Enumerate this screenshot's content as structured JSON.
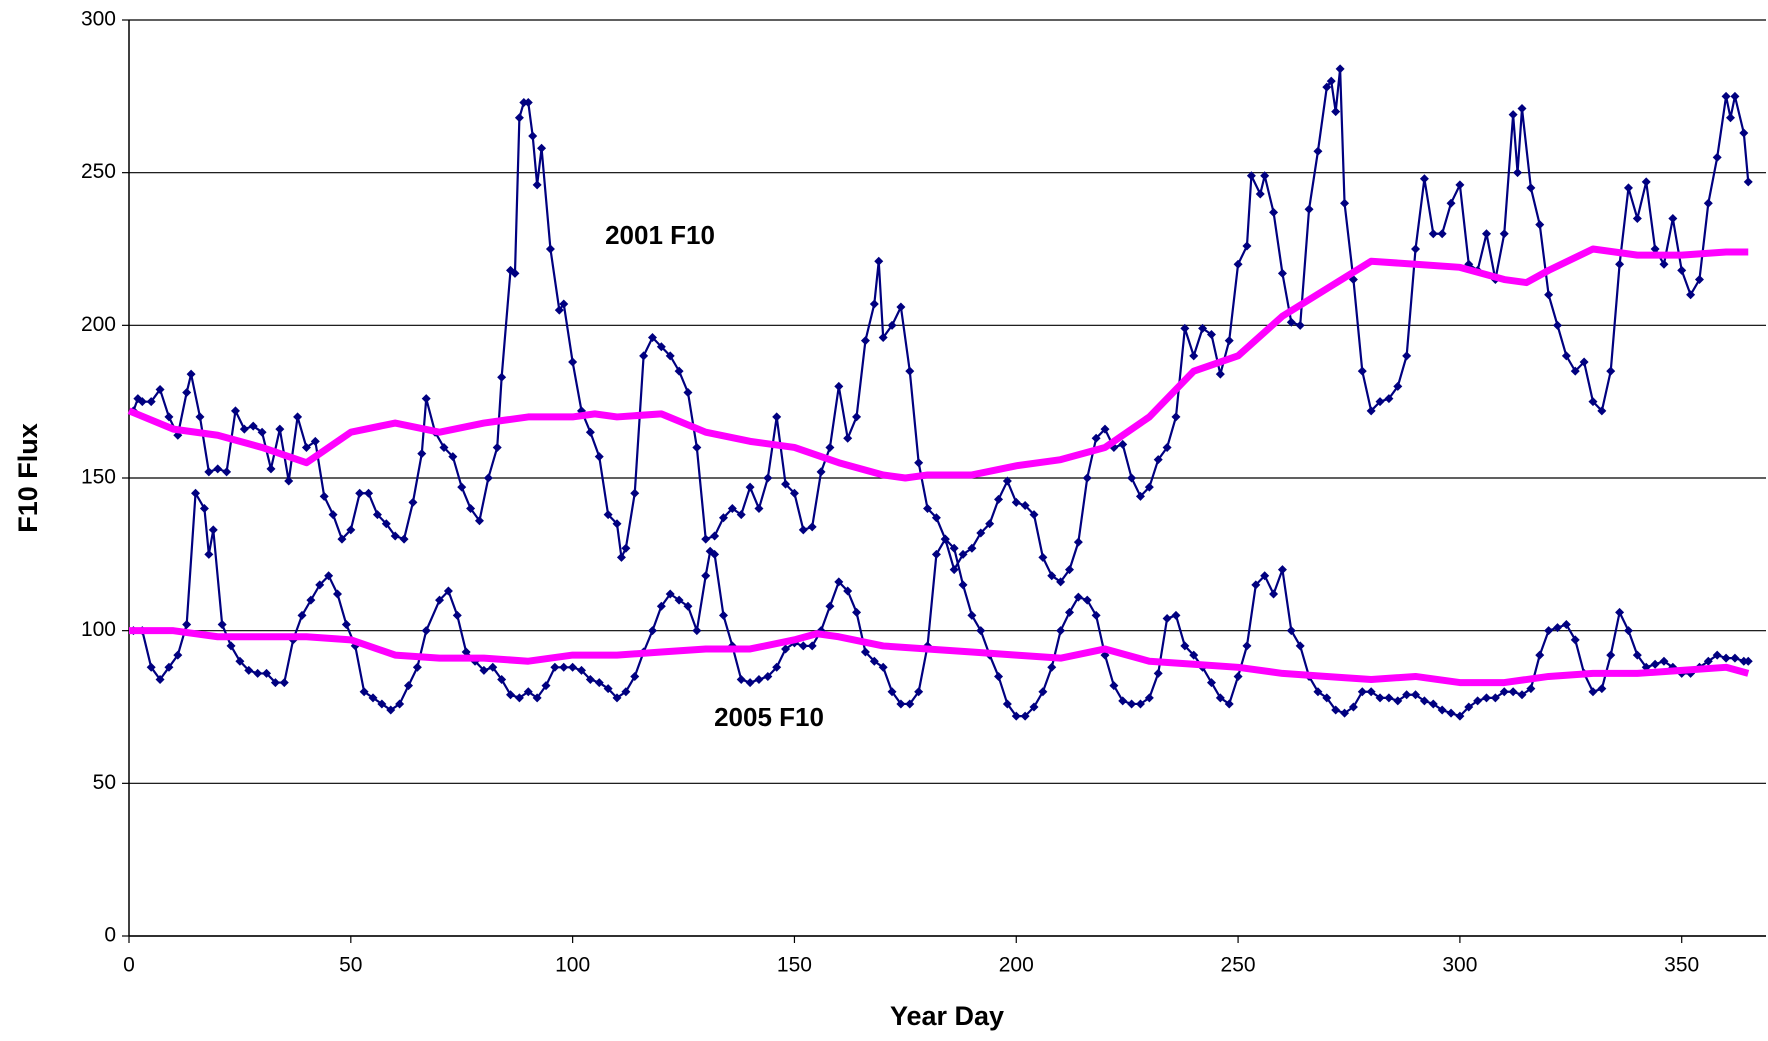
{
  "chart_data": {
    "type": "line",
    "xlabel": "Year Day",
    "ylabel": "F10 Flux",
    "annotations": [
      "2001 F10",
      "2005 F10"
    ],
    "xlim": [
      0,
      369
    ],
    "xticks": [
      0,
      50,
      100,
      150,
      200,
      250,
      300,
      350
    ],
    "ylim": [
      0,
      300
    ],
    "yticks": [
      0,
      50,
      100,
      150,
      200,
      250,
      300
    ],
    "grid": true,
    "series": [
      {
        "color": "#000080",
        "style": "markers",
        "x": [
          1,
          2,
          3,
          5,
          7,
          9,
          11,
          13,
          14,
          16,
          18,
          20,
          22,
          24,
          26,
          28,
          30,
          32,
          34,
          36,
          38,
          40,
          42,
          44,
          46,
          48,
          50,
          52,
          54,
          56,
          58,
          60,
          62,
          64,
          66,
          67,
          69,
          71,
          73,
          75,
          77,
          79,
          81,
          83,
          84,
          86,
          87,
          88,
          89,
          90,
          91,
          92,
          93,
          95,
          97,
          98,
          100,
          102,
          104,
          106,
          108,
          110,
          111,
          112,
          114,
          116,
          118,
          120,
          122,
          124,
          126,
          128,
          130,
          132,
          134,
          136,
          138,
          140,
          142,
          144,
          146,
          148,
          150,
          152,
          154,
          156,
          158,
          160,
          162,
          164,
          166,
          168,
          169,
          170,
          172,
          174,
          176,
          178,
          180,
          182,
          184,
          186,
          188,
          190,
          192,
          194,
          196,
          198,
          200,
          202,
          204,
          206,
          208,
          210,
          212,
          214,
          216,
          218,
          220,
          222,
          224,
          226,
          228,
          230,
          232,
          234,
          236,
          238,
          240,
          242,
          244,
          246,
          248,
          250,
          252,
          253,
          255,
          256,
          258,
          260,
          262,
          264,
          266,
          268,
          270,
          271,
          272,
          273,
          274,
          276,
          278,
          280,
          282,
          284,
          286,
          288,
          290,
          292,
          294,
          296,
          298,
          300,
          302,
          304,
          306,
          308,
          310,
          312,
          313,
          314,
          316,
          318,
          320,
          322,
          324,
          326,
          328,
          330,
          332,
          334,
          336,
          338,
          340,
          342,
          344,
          346,
          348,
          350,
          352,
          354,
          356,
          358,
          360,
          361,
          362,
          364,
          365
        ],
        "values": [
          172,
          176,
          175,
          175,
          179,
          170,
          164,
          178,
          184,
          170,
          152,
          153,
          152,
          172,
          166,
          167,
          165,
          153,
          166,
          149,
          170,
          160,
          162,
          144,
          138,
          130,
          133,
          145,
          145,
          138,
          135,
          131,
          130,
          142,
          158,
          176,
          165,
          160,
          157,
          147,
          140,
          136,
          150,
          160,
          183,
          218,
          217,
          268,
          273,
          273,
          262,
          246,
          258,
          225,
          205,
          207,
          188,
          172,
          165,
          157,
          138,
          135,
          124,
          127,
          145,
          190,
          196,
          193,
          190,
          185,
          178,
          160,
          130,
          131,
          137,
          140,
          138,
          147,
          140,
          150,
          170,
          148,
          145,
          133,
          134,
          152,
          160,
          180,
          163,
          170,
          195,
          207,
          221,
          196,
          200,
          206,
          185,
          155,
          140,
          137,
          130,
          120,
          125,
          127,
          132,
          135,
          143,
          149,
          142,
          141,
          138,
          124,
          118,
          116,
          120,
          129,
          150,
          163,
          166,
          160,
          161,
          150,
          144,
          147,
          156,
          160,
          170,
          199,
          190,
          199,
          197,
          184,
          195,
          220,
          226,
          249,
          243,
          249,
          237,
          217,
          201,
          200,
          238,
          257,
          278,
          280,
          270,
          284,
          240,
          215,
          185,
          172,
          175,
          176,
          180,
          190,
          225,
          248,
          230,
          230,
          240,
          246,
          220,
          218,
          230,
          215,
          230,
          269,
          250,
          271,
          245,
          233,
          210,
          200,
          190,
          185,
          188,
          175,
          172,
          185,
          220,
          245,
          235,
          247,
          225,
          220,
          235,
          218,
          210,
          215,
          240,
          255,
          275,
          268,
          275,
          263,
          247
        ]
      },
      {
        "color": "#000080",
        "style": "markers",
        "x": [
          1,
          3,
          5,
          7,
          9,
          11,
          13,
          15,
          17,
          18,
          19,
          21,
          23,
          25,
          27,
          29,
          31,
          33,
          35,
          37,
          39,
          41,
          43,
          45,
          47,
          49,
          51,
          53,
          55,
          57,
          59,
          61,
          63,
          65,
          67,
          70,
          72,
          74,
          76,
          78,
          80,
          82,
          84,
          86,
          88,
          90,
          92,
          94,
          96,
          98,
          100,
          102,
          104,
          106,
          108,
          110,
          112,
          114,
          116,
          118,
          120,
          122,
          124,
          126,
          128,
          130,
          131,
          132,
          134,
          136,
          138,
          140,
          142,
          144,
          146,
          148,
          150,
          152,
          154,
          156,
          158,
          160,
          162,
          164,
          166,
          168,
          170,
          172,
          174,
          176,
          178,
          180,
          182,
          184,
          186,
          188,
          190,
          192,
          194,
          196,
          198,
          200,
          202,
          204,
          206,
          208,
          210,
          212,
          214,
          216,
          218,
          220,
          222,
          224,
          226,
          228,
          230,
          232,
          234,
          236,
          238,
          240,
          242,
          244,
          246,
          248,
          250,
          252,
          254,
          256,
          258,
          260,
          262,
          264,
          266,
          268,
          270,
          272,
          274,
          276,
          278,
          280,
          282,
          284,
          286,
          288,
          290,
          292,
          294,
          296,
          298,
          300,
          302,
          304,
          306,
          308,
          310,
          312,
          314,
          316,
          318,
          320,
          322,
          324,
          326,
          328,
          330,
          332,
          334,
          336,
          338,
          340,
          342,
          344,
          346,
          348,
          350,
          352,
          354,
          356,
          358,
          360,
          362,
          364,
          365
        ],
        "values": [
          100,
          100,
          88,
          84,
          88,
          92,
          102,
          145,
          140,
          125,
          133,
          102,
          95,
          90,
          87,
          86,
          86,
          83,
          83,
          97,
          105,
          110,
          115,
          118,
          112,
          102,
          95,
          80,
          78,
          76,
          74,
          76,
          82,
          88,
          100,
          110,
          113,
          105,
          93,
          90,
          87,
          88,
          84,
          79,
          78,
          80,
          78,
          82,
          88,
          88,
          88,
          87,
          84,
          83,
          81,
          78,
          80,
          85,
          93,
          100,
          108,
          112,
          110,
          108,
          100,
          118,
          126,
          125,
          105,
          95,
          84,
          83,
          84,
          85,
          88,
          94,
          96,
          95,
          95,
          100,
          108,
          116,
          113,
          106,
          93,
          90,
          88,
          80,
          76,
          76,
          80,
          95,
          125,
          130,
          127,
          115,
          105,
          100,
          92,
          85,
          76,
          72,
          72,
          75,
          80,
          88,
          100,
          106,
          111,
          110,
          105,
          92,
          82,
          77,
          76,
          76,
          78,
          86,
          104,
          105,
          95,
          92,
          88,
          83,
          78,
          76,
          85,
          95,
          115,
          118,
          112,
          120,
          100,
          95,
          85,
          80,
          78,
          74,
          73,
          75,
          80,
          80,
          78,
          78,
          77,
          79,
          79,
          77,
          76,
          74,
          73,
          72,
          75,
          77,
          78,
          78,
          80,
          80,
          79,
          81,
          92,
          100,
          101,
          102,
          97,
          86,
          80,
          81,
          92,
          106,
          100,
          92,
          88,
          89,
          90,
          88,
          86,
          86,
          88,
          90,
          92,
          91,
          91,
          90,
          90
        ]
      },
      {
        "color": "#ff00ff",
        "style": "thick",
        "x": [
          0,
          10,
          20,
          30,
          40,
          50,
          60,
          70,
          80,
          90,
          100,
          105,
          110,
          120,
          130,
          140,
          150,
          160,
          170,
          175,
          180,
          190,
          200,
          210,
          220,
          230,
          240,
          250,
          260,
          270,
          280,
          290,
          300,
          310,
          315,
          320,
          330,
          340,
          350,
          360,
          365
        ],
        "values": [
          172,
          166,
          164,
          160,
          155,
          165,
          168,
          165,
          168,
          170,
          170,
          171,
          170,
          171,
          165,
          162,
          160,
          155,
          151,
          150,
          151,
          151,
          154,
          156,
          160,
          170,
          185,
          190,
          203,
          212,
          221,
          220,
          219,
          215,
          214,
          218,
          225,
          223,
          223,
          224,
          224
        ]
      },
      {
        "color": "#ff00ff",
        "style": "thick",
        "x": [
          0,
          10,
          20,
          30,
          40,
          50,
          60,
          70,
          80,
          90,
          100,
          110,
          120,
          130,
          140,
          150,
          155,
          160,
          170,
          180,
          190,
          200,
          210,
          220,
          230,
          240,
          250,
          260,
          270,
          280,
          290,
          300,
          310,
          320,
          330,
          340,
          350,
          360,
          365
        ],
        "values": [
          100,
          100,
          98,
          98,
          98,
          97,
          92,
          91,
          91,
          90,
          92,
          92,
          93,
          94,
          94,
          97,
          99,
          98,
          95,
          94,
          93,
          92,
          91,
          94,
          90,
          89,
          88,
          86,
          85,
          84,
          85,
          83,
          83,
          85,
          86,
          86,
          87,
          88,
          86
        ]
      }
    ]
  }
}
